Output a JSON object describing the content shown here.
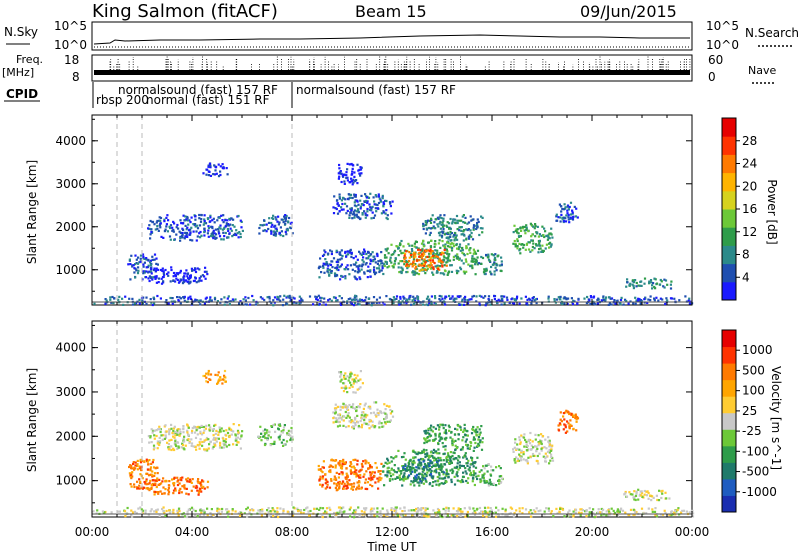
{
  "header": {
    "station": "King Salmon (fitACF)",
    "beam": "Beam 15",
    "date": "09/Jun/2015"
  },
  "top_panels": {
    "nsky_label": "N.Sky",
    "nsky_ticks": [
      "10^5",
      "10^0"
    ],
    "nsearch_label": "N.Search",
    "nsearch_ticks": [
      "10^5",
      "10^0"
    ],
    "freq_label": "Freq.",
    "freq_unit": "[MHz]",
    "freq_ticks": [
      "18",
      "8"
    ],
    "nave_label": "Nave",
    "nave_ticks": [
      "60",
      "0"
    ],
    "cpid_label": "CPID",
    "cpid_segments": [
      {
        "text": "rbsp",
        "start_h": 0.4
      },
      {
        "text": "200",
        "start_h": 1.6
      },
      {
        "text": "normalsound (fast) 157 RF",
        "start_h": 1.2
      },
      {
        "text": "normal (fast) 151 RF",
        "start_h": 2.2
      },
      {
        "text": "normalsound (fast) 157 RF",
        "start_h": 9.0
      }
    ]
  },
  "chart_data": [
    {
      "type": "heatmap",
      "name": "power",
      "ylabel": "Slant Range [km]",
      "xlabel": "",
      "xlim": [
        0,
        24
      ],
      "ylim": [
        180,
        4600
      ],
      "yticks": [
        "1000",
        "2000",
        "3000",
        "4000"
      ],
      "xticks": [
        "00:00",
        "04:00",
        "08:00",
        "12:00",
        "16:00",
        "20:00",
        "00:00"
      ],
      "colorbar": {
        "label": "Power [dB]",
        "ticks": [
          "4",
          "8",
          "12",
          "16",
          "20",
          "24",
          "28"
        ],
        "colors": [
          "#1a1aff",
          "#1f4fb0",
          "#2b8a8a",
          "#2e9c4a",
          "#6cc838",
          "#d6d21e",
          "#ffb400",
          "#ff7a00",
          "#ff3300",
          "#e60000"
        ]
      },
      "vlines_h": [
        1.0,
        2.0,
        8.0
      ],
      "regions": [
        {
          "t0": 1.4,
          "t1": 2.6,
          "r0": 800,
          "r1": 1400,
          "level": 1
        },
        {
          "t0": 2.0,
          "t1": 4.6,
          "r0": 700,
          "r1": 1100,
          "level": 0
        },
        {
          "t0": 2.2,
          "t1": 6.0,
          "r0": 1700,
          "r1": 2300,
          "level": 1
        },
        {
          "t0": 4.4,
          "t1": 5.4,
          "r0": 3200,
          "r1": 3500,
          "level": 0
        },
        {
          "t0": 6.6,
          "t1": 8.0,
          "r0": 1800,
          "r1": 2300,
          "level": 1
        },
        {
          "t0": 9.0,
          "t1": 11.6,
          "r0": 800,
          "r1": 1500,
          "level": 1
        },
        {
          "t0": 9.6,
          "t1": 12.0,
          "r0": 2200,
          "r1": 2800,
          "level": 1
        },
        {
          "t0": 9.8,
          "t1": 10.8,
          "r0": 3000,
          "r1": 3500,
          "level": 0
        },
        {
          "t0": 11.6,
          "t1": 15.4,
          "r0": 900,
          "r1": 1700,
          "level": 3
        },
        {
          "t0": 12.4,
          "t1": 14.2,
          "r0": 1000,
          "r1": 1500,
          "level": 7
        },
        {
          "t0": 13.2,
          "t1": 15.6,
          "r0": 1700,
          "r1": 2300,
          "level": 2
        },
        {
          "t0": 15.4,
          "t1": 16.4,
          "r0": 900,
          "r1": 1400,
          "level": 2
        },
        {
          "t0": 16.8,
          "t1": 18.4,
          "r0": 1400,
          "r1": 2100,
          "level": 3
        },
        {
          "t0": 18.5,
          "t1": 19.4,
          "r0": 2100,
          "r1": 2600,
          "level": 1
        },
        {
          "t0": 21.2,
          "t1": 23.2,
          "r0": 580,
          "r1": 820,
          "level": 2
        },
        {
          "t0": 0.0,
          "t1": 24.0,
          "r0": 200,
          "r1": 420,
          "level": 1
        }
      ]
    },
    {
      "type": "heatmap",
      "name": "velocity",
      "ylabel": "Slant Range [km]",
      "xlabel": "Time UT",
      "xlim": [
        0,
        24
      ],
      "ylim": [
        180,
        4600
      ],
      "yticks": [
        "1000",
        "2000",
        "3000",
        "4000"
      ],
      "xticks": [
        "00:00",
        "04:00",
        "08:00",
        "12:00",
        "16:00",
        "20:00",
        "00:00"
      ],
      "colorbar": {
        "label": "Velocity [m s^-1]",
        "ticks": [
          "1000",
          "500",
          "100",
          "25",
          "-25",
          "-100",
          "-500",
          "-1000"
        ],
        "colors": [
          "#1a2eb0",
          "#1f5cc0",
          "#1f7a6a",
          "#2e9c4a",
          "#6cc838",
          "#c8c8c8",
          "#ffcc33",
          "#ffa500",
          "#ff7a00",
          "#ff3300",
          "#e60000"
        ]
      },
      "vlines_h": [
        1.0,
        2.0,
        8.0
      ],
      "regions": [
        {
          "t0": 1.4,
          "t1": 2.6,
          "r0": 800,
          "r1": 1500,
          "level": 8
        },
        {
          "t0": 2.0,
          "t1": 4.6,
          "r0": 700,
          "r1": 1100,
          "level": 8
        },
        {
          "t0": 2.2,
          "t1": 6.0,
          "r0": 1700,
          "r1": 2300,
          "level": 5
        },
        {
          "t0": 4.4,
          "t1": 5.4,
          "r0": 3200,
          "r1": 3500,
          "level": 7
        },
        {
          "t0": 6.6,
          "t1": 8.0,
          "r0": 1800,
          "r1": 2300,
          "level": 4
        },
        {
          "t0": 9.0,
          "t1": 11.6,
          "r0": 800,
          "r1": 1500,
          "level": 8
        },
        {
          "t0": 9.6,
          "t1": 12.0,
          "r0": 2200,
          "r1": 2800,
          "level": 5
        },
        {
          "t0": 9.8,
          "t1": 10.8,
          "r0": 3000,
          "r1": 3500,
          "level": 5
        },
        {
          "t0": 11.6,
          "t1": 15.4,
          "r0": 900,
          "r1": 1700,
          "level": 3
        },
        {
          "t0": 12.4,
          "t1": 14.2,
          "r0": 1000,
          "r1": 1500,
          "level": 2
        },
        {
          "t0": 13.2,
          "t1": 15.6,
          "r0": 1700,
          "r1": 2300,
          "level": 3
        },
        {
          "t0": 15.4,
          "t1": 16.4,
          "r0": 900,
          "r1": 1400,
          "level": 4
        },
        {
          "t0": 16.8,
          "t1": 18.4,
          "r0": 1400,
          "r1": 2100,
          "level": 5
        },
        {
          "t0": 18.5,
          "t1": 19.4,
          "r0": 2100,
          "r1": 2600,
          "level": 8
        },
        {
          "t0": 21.2,
          "t1": 23.2,
          "r0": 580,
          "r1": 820,
          "level": 5
        },
        {
          "t0": 0.0,
          "t1": 24.0,
          "r0": 200,
          "r1": 420,
          "level": 5
        }
      ]
    }
  ]
}
